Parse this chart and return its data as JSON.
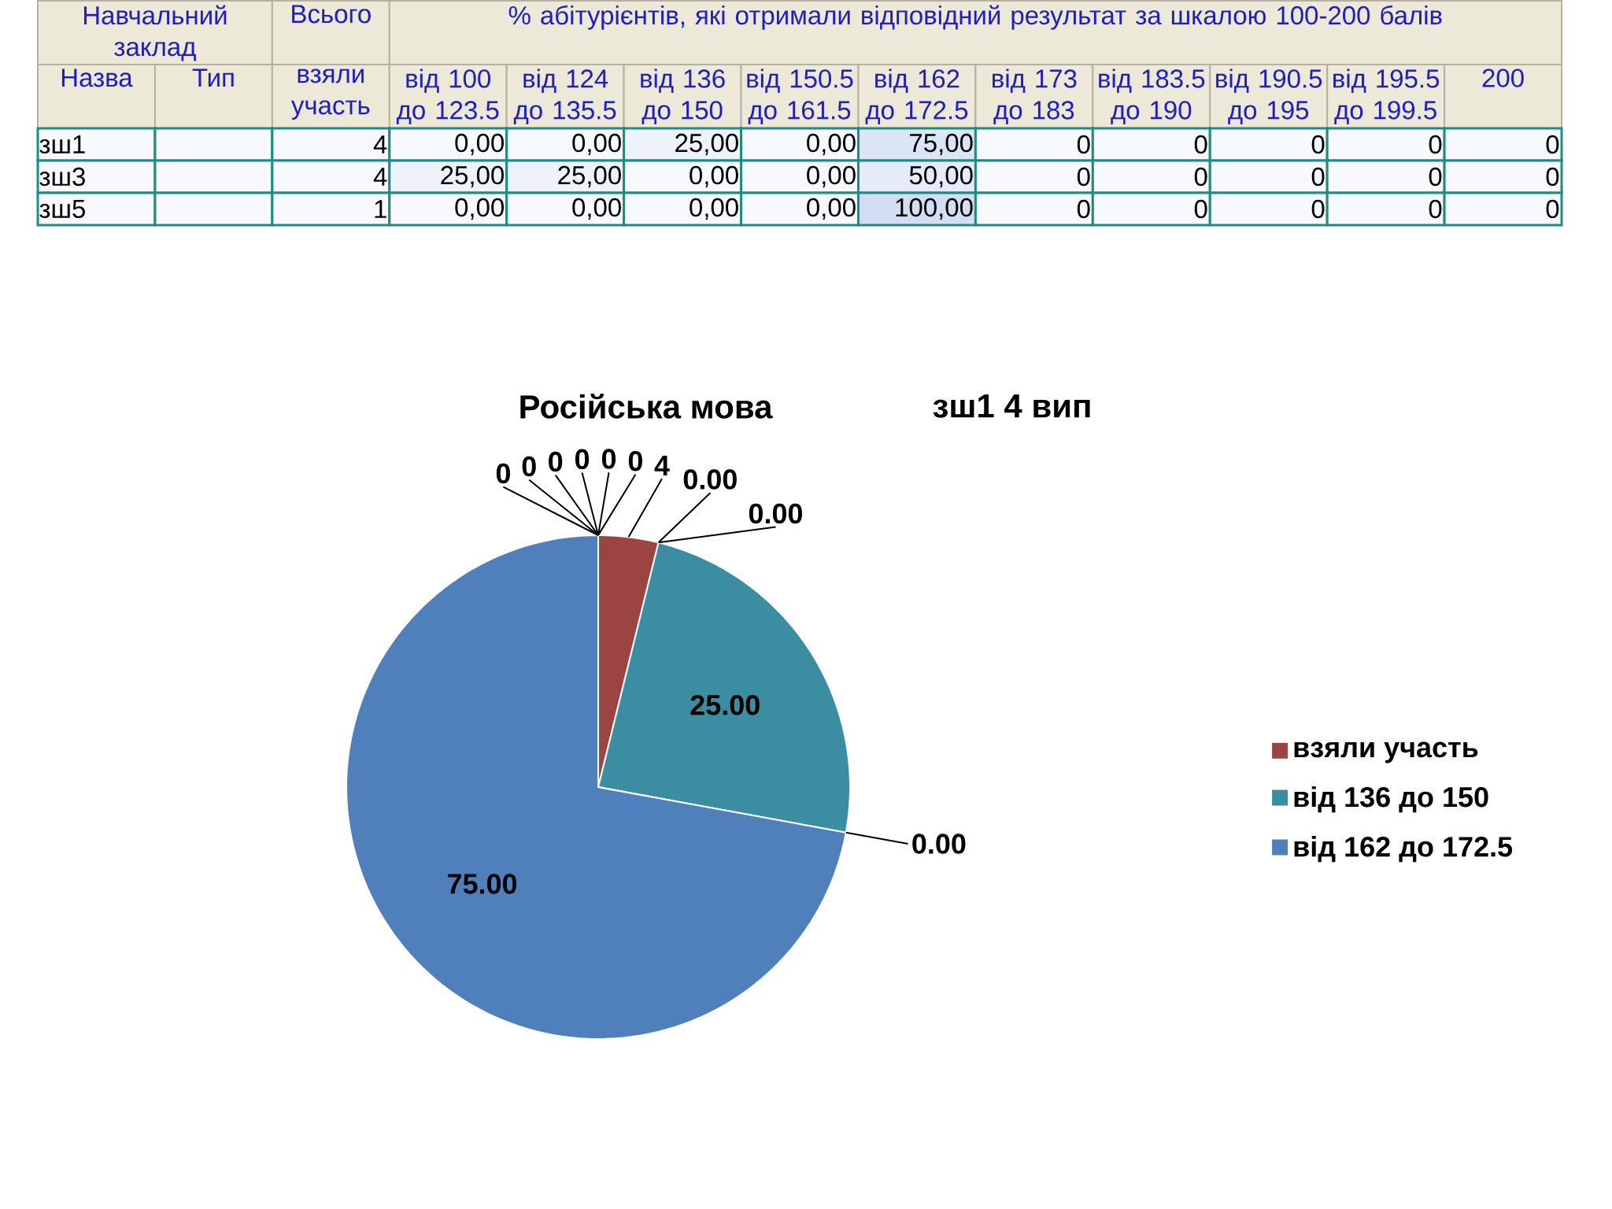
{
  "chart_data": [
    {
      "type": "heatmap",
      "ylabel": "Назва",
      "annotations": [
        "Навчальний заклад",
        "Всього",
        "% абітурієнтів, які отримали відповідний результат за шкалою 100-200 балів"
      ],
      "categories": [
        "Тип",
        "взяли участь",
        "від 100 до 123.5",
        "від 124 до 135.5",
        "від 136 до 150",
        "від 150.5 до 161.5",
        "від 162 до 172.5",
        "від 173 до 183",
        "від 183.5 до 190",
        "від 190.5 до 195",
        "від 195.5 до 199.5",
        "200"
      ],
      "y_categories": [
        "зш1",
        "зш3",
        "зш5"
      ],
      "cells": [
        [
          null,
          4,
          0,
          0,
          25,
          0,
          75,
          0,
          0,
          0,
          0,
          0
        ],
        [
          null,
          4,
          25,
          25,
          0,
          0,
          50,
          0,
          0,
          0,
          0,
          0
        ],
        [
          null,
          1,
          0,
          0,
          0,
          0,
          100,
          0,
          0,
          0,
          0,
          0
        ]
      ],
      "cell_labels": [
        [
          null,
          "4",
          "0,00",
          "0,00",
          "25,00",
          "0,00",
          "75,00",
          "0",
          "0",
          "0",
          "0",
          "0"
        ],
        [
          null,
          "4",
          "25,00",
          "25,00",
          "0,00",
          "0,00",
          "50,00",
          "0",
          "0",
          "0",
          "0",
          "0"
        ],
        [
          null,
          "1",
          "0,00",
          "0,00",
          "0,00",
          "0,00",
          "100,00",
          "0",
          "0",
          "0",
          "0",
          "0"
        ]
      ]
    },
    {
      "type": "pie",
      "title": "Російська мова",
      "subtitle": "зш1 4 вип",
      "categories": [
        "взяли участь",
        null,
        null,
        "від 136 до 150",
        null,
        "від 162 до 172.5",
        null,
        null,
        null,
        null,
        null,
        null
      ],
      "values": [
        4,
        0,
        0,
        25,
        0,
        75,
        0,
        0,
        0,
        0,
        0,
        0
      ],
      "value_labels": [
        "4",
        "0.00",
        "0.00",
        "25.00",
        "0.00",
        "75.00",
        "0",
        "0",
        "0",
        "0",
        "0",
        "0"
      ],
      "colors": [
        "#9c4441",
        null,
        null,
        "#3b8da1",
        null,
        "#4f80bc",
        null,
        null,
        null,
        null,
        null,
        null
      ],
      "legend": "right"
    }
  ]
}
